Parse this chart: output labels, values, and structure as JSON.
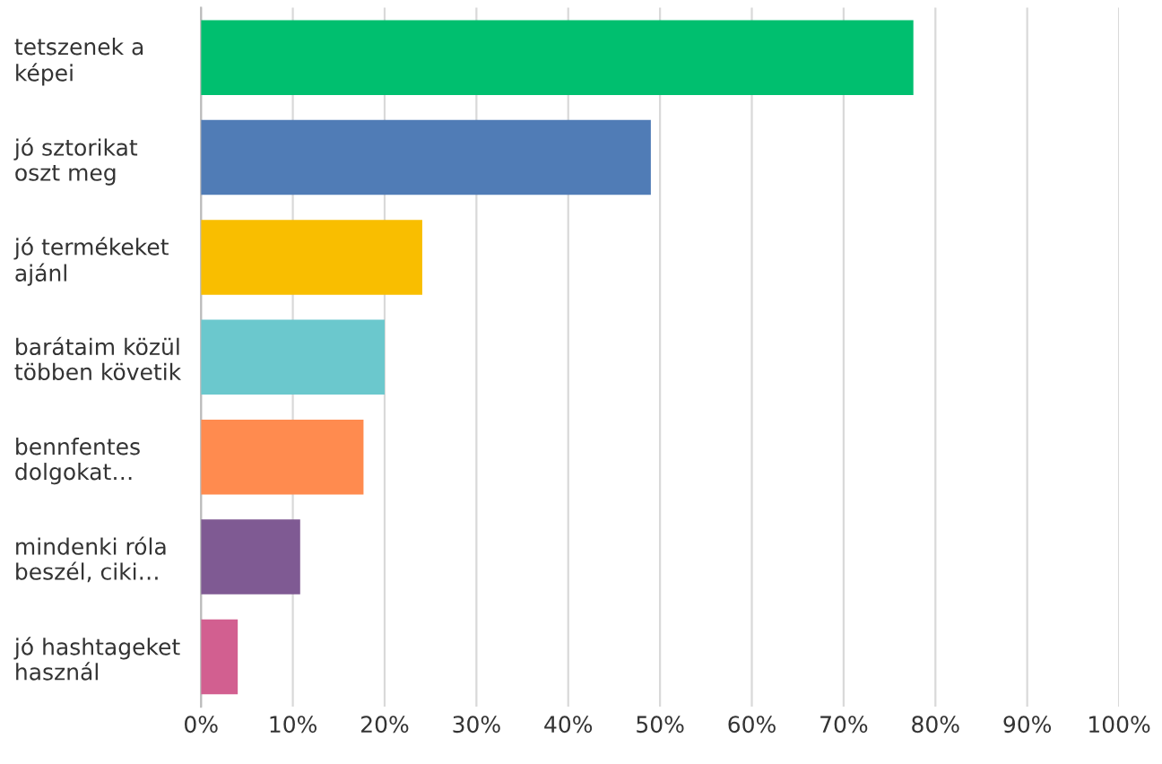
{
  "chart_data": {
    "type": "bar",
    "orientation": "horizontal",
    "categories": [
      "tetszenek a\nképei",
      "jó sztorikat\noszt meg",
      "jó termékeket\najánl",
      "barátaim közül\ntöbben követik",
      "bennfentes\ndolgokat…",
      "mindenki róla\nbeszél, ciki…",
      "jó hashtageket\nhasznál"
    ],
    "values": [
      77.6,
      49.0,
      24.1,
      20.0,
      17.7,
      10.8,
      4.0
    ],
    "colors": [
      "#00bf6f",
      "#507cb6",
      "#f9be00",
      "#6bc8cd",
      "#ff8b4f",
      "#7f5a93",
      "#d25f90"
    ],
    "xlim": [
      0,
      100
    ],
    "xticks": [
      {
        "value": 0,
        "label": "0%"
      },
      {
        "value": 10,
        "label": "10%"
      },
      {
        "value": 20,
        "label": "20%"
      },
      {
        "value": 30,
        "label": "30%"
      },
      {
        "value": 40,
        "label": "40%"
      },
      {
        "value": 50,
        "label": "50%"
      },
      {
        "value": 60,
        "label": "60%"
      },
      {
        "value": 70,
        "label": "70%"
      },
      {
        "value": 80,
        "label": "80%"
      },
      {
        "value": 90,
        "label": "90%"
      },
      {
        "value": 100,
        "label": "100%"
      }
    ],
    "grid": "x"
  }
}
